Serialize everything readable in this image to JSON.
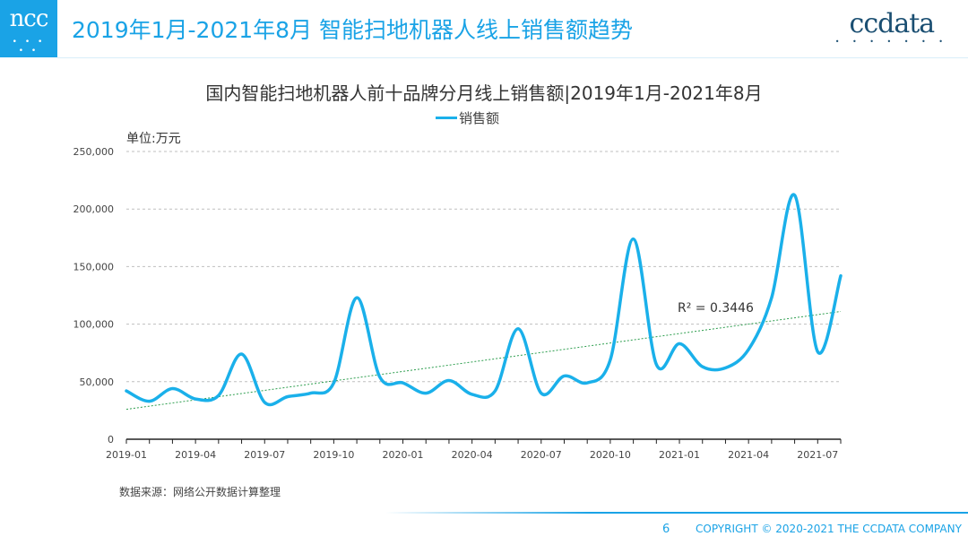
{
  "header": {
    "logo_text": "ncc",
    "logo_dots": "• • • • •",
    "title": "2019年1月-2021年8月 智能扫地机器人线上销售额趋势",
    "brand_text": "ccdata",
    "brand_dots": "• • • • • • •"
  },
  "colors": {
    "accent": "#1aa3e6",
    "series": "#1ab0ea",
    "trendline": "#2e9e4f",
    "grid": "#bfbfbf"
  },
  "chart_data": {
    "type": "line",
    "title": "国内智能扫地机器人前十品牌分月线上销售额|2019年1月-2021年8月",
    "unit_label": "单位:万元",
    "ylim": [
      0,
      250000
    ],
    "y_ticks": [
      "0",
      "50,000",
      "100,000",
      "150,000",
      "200,000",
      "250,000"
    ],
    "y_tick_values": [
      0,
      50000,
      100000,
      150000,
      200000,
      250000
    ],
    "x_tick_labels": [
      "2019-01",
      "2019-04",
      "2019-07",
      "2019-10",
      "2020-01",
      "2020-04",
      "2020-07",
      "2020-10",
      "2021-01",
      "2021-04",
      "2021-07"
    ],
    "grid": true,
    "legend_position": "top-center",
    "series": [
      {
        "name": "销售额",
        "x": [
          "2019-01",
          "2019-02",
          "2019-03",
          "2019-04",
          "2019-05",
          "2019-06",
          "2019-07",
          "2019-08",
          "2019-09",
          "2019-10",
          "2019-11",
          "2019-12",
          "2020-01",
          "2020-02",
          "2020-03",
          "2020-04",
          "2020-05",
          "2020-06",
          "2020-07",
          "2020-08",
          "2020-09",
          "2020-10",
          "2020-11",
          "2020-12",
          "2021-01",
          "2021-02",
          "2021-03",
          "2021-04",
          "2021-05",
          "2021-06",
          "2021-07",
          "2021-08"
        ],
        "values": [
          42000,
          33000,
          44000,
          35000,
          38000,
          74000,
          32000,
          37000,
          40000,
          49000,
          123000,
          54000,
          49000,
          40000,
          51000,
          39000,
          42000,
          96000,
          40000,
          55000,
          49000,
          69000,
          174000,
          65000,
          83000,
          63000,
          62000,
          78000,
          123000,
          212000,
          76000,
          142000
        ]
      }
    ],
    "trendline": {
      "type": "linear",
      "r2_label": "R² = 0.3446",
      "start_value": 26000,
      "end_value": 111000
    }
  },
  "footer": {
    "source": "数据来源：网络公开数据计算整理",
    "page_number": "6",
    "copyright": "COPYRIGHT © 2020-2021 THE CCDATA COMPANY"
  }
}
